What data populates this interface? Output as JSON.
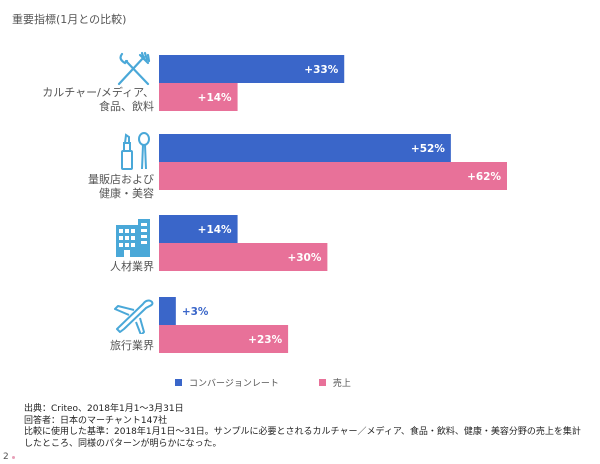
{
  "page": {
    "title": "重要指標(1月との比較)",
    "page_number": "2"
  },
  "colors": {
    "conversion": "#3a66c9",
    "sales": "#e87199",
    "icon": "#4aa8d8"
  },
  "chart_data": {
    "type": "bar",
    "orientation": "horizontal",
    "title": "重要指標(1月との比較)",
    "categories": [
      "カルチャー/メディア、食品、飲料",
      "量販店および健康・美容",
      "人材業界",
      "旅行業界"
    ],
    "category_labels": [
      [
        "カルチャー/メディア、",
        "食品、飲料"
      ],
      [
        "量販店および",
        "健康・美容"
      ],
      [
        "人材業界"
      ],
      [
        "旅行業界"
      ]
    ],
    "icons": [
      "fork-knife-icon",
      "cosmetics-icon",
      "building-icon",
      "airplane-icon"
    ],
    "series": [
      {
        "name": "コンバージョンレート",
        "values": [
          33,
          52,
          14,
          3
        ],
        "labels": [
          "+33%",
          "+52%",
          "+14%",
          "+3%"
        ]
      },
      {
        "name": "売上",
        "values": [
          14,
          62,
          30,
          23
        ],
        "labels": [
          "+14%",
          "+62%",
          "+30%",
          "+23%"
        ]
      }
    ],
    "unit": "%",
    "xlim": [
      0,
      62
    ],
    "legend_position": "bottom"
  },
  "footer": {
    "source_lines": [
      "出典：Criteo、2018年1月1～3月31日",
      "回答者：日本のマーチャント147社",
      "比較に使用した基準：2018年1月1日～31日。サンプルに必要とされるカルチャー／メディア、食品・飲料、健康・美容分野の売上を集計",
      "したところ、同様のパターンが明らかになった。"
    ]
  }
}
